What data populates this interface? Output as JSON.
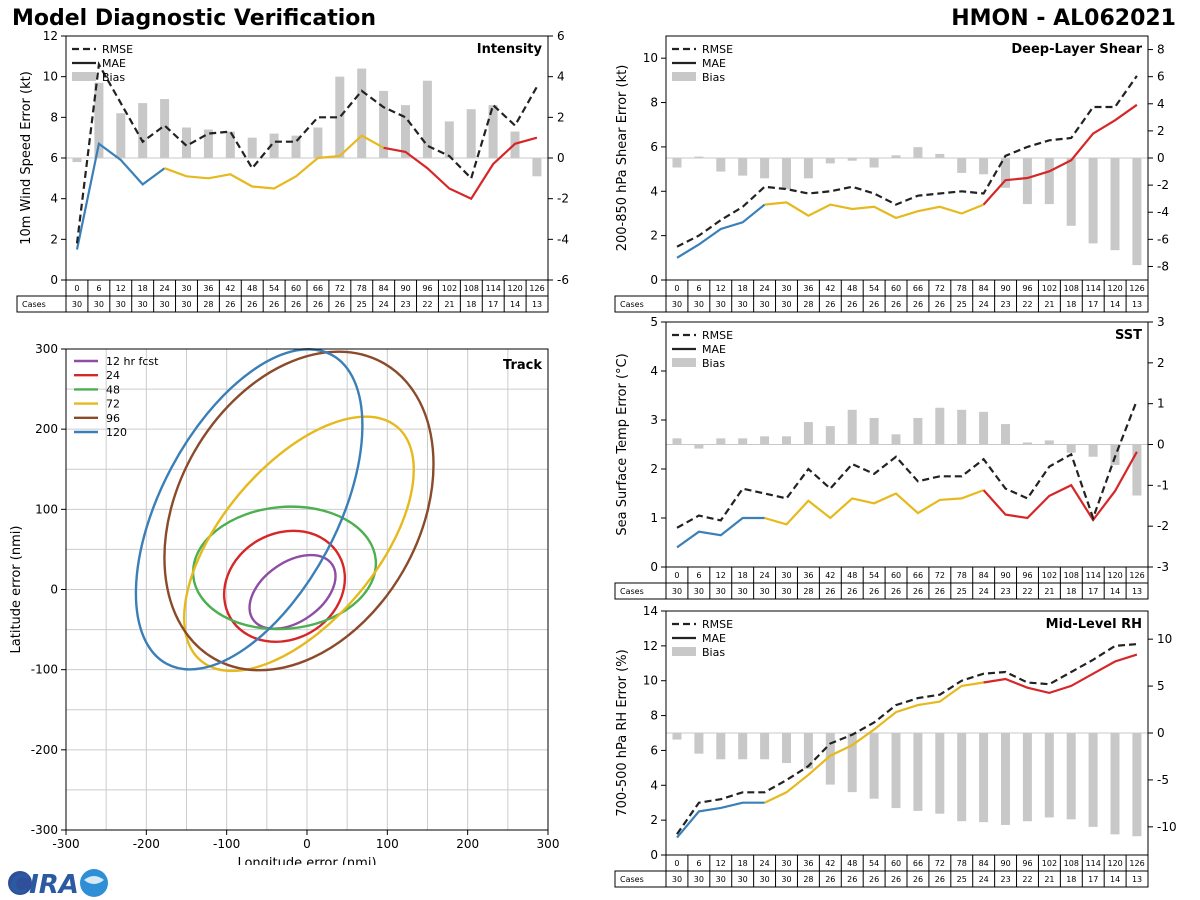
{
  "header": {
    "title": "Model Diagnostic Verification",
    "model_storm": "HMON - AL062021"
  },
  "colors": {
    "blue": "#3a7fb8",
    "yellow": "#e6b91e",
    "red": "#d62728",
    "rmse": "#222222",
    "bias": "#c8c8c8",
    "grid": "#cccccc"
  },
  "table": {
    "cases_label": "Cases",
    "hours": [
      "0",
      "6",
      "12",
      "18",
      "24",
      "30",
      "36",
      "42",
      "48",
      "54",
      "60",
      "66",
      "72",
      "78",
      "84",
      "90",
      "96",
      "102",
      "108",
      "114",
      "120",
      "126"
    ],
    "cases": [
      "30",
      "30",
      "30",
      "30",
      "30",
      "30",
      "28",
      "26",
      "26",
      "26",
      "26",
      "26",
      "26",
      "25",
      "24",
      "23",
      "22",
      "21",
      "18",
      "17",
      "14",
      "13"
    ]
  },
  "logo": {
    "text": "CIRA"
  },
  "chart_data": [
    {
      "id": "intensity",
      "type": "line",
      "title": "Intensity",
      "ylabel": "10m Wind Speed Error (kt)",
      "ylim": [
        0,
        12
      ],
      "yticks": [
        0,
        2,
        4,
        6,
        8,
        10,
        12
      ],
      "y2lim": [
        -6,
        6
      ],
      "y2ticks": [
        -6,
        -4,
        -2,
        0,
        2,
        4,
        6
      ],
      "legend": [
        "RMSE",
        "MAE",
        "Bias"
      ],
      "x": [
        0,
        6,
        12,
        18,
        24,
        30,
        36,
        42,
        48,
        54,
        60,
        66,
        72,
        78,
        84,
        90,
        96,
        102,
        108,
        114,
        120,
        126
      ],
      "rmse": [
        1.8,
        10.6,
        8.7,
        6.8,
        7.6,
        6.6,
        7.2,
        7.3,
        5.5,
        6.8,
        6.8,
        8.0,
        8.0,
        9.3,
        8.5,
        8.0,
        6.6,
        6.1,
        5.0,
        8.6,
        7.6,
        9.5
      ],
      "mae": [
        1.5,
        6.7,
        5.9,
        4.7,
        5.5,
        5.1,
        5.0,
        5.2,
        4.6,
        4.5,
        5.1,
        6.0,
        6.1,
        7.1,
        6.5,
        6.3,
        5.5,
        4.5,
        4.0,
        5.7,
        6.7,
        7.0
      ],
      "bias": [
        -0.2,
        3.7,
        2.2,
        2.7,
        2.9,
        1.5,
        1.4,
        1.3,
        1.0,
        1.2,
        1.1,
        1.5,
        4.0,
        4.4,
        3.3,
        2.6,
        3.8,
        1.8,
        2.4,
        2.6,
        1.3,
        -0.9
      ]
    },
    {
      "id": "shear",
      "type": "line",
      "title": "Deep-Layer Shear",
      "ylabel": "200-850 hPa Shear Error (kt)",
      "ylim": [
        0,
        11
      ],
      "yticks": [
        0,
        2,
        4,
        6,
        8,
        10
      ],
      "y2lim": [
        -9,
        9
      ],
      "y2ticks": [
        -8,
        -6,
        -4,
        -2,
        0,
        2,
        4,
        6,
        8
      ],
      "legend": [
        "RMSE",
        "MAE",
        "Bias"
      ],
      "x": [
        0,
        6,
        12,
        18,
        24,
        30,
        36,
        42,
        48,
        54,
        60,
        66,
        72,
        78,
        84,
        90,
        96,
        102,
        108,
        114,
        120,
        126
      ],
      "rmse": [
        1.5,
        2.0,
        2.7,
        3.3,
        4.2,
        4.1,
        3.9,
        4.0,
        4.2,
        3.9,
        3.4,
        3.8,
        3.9,
        4.0,
        3.9,
        5.6,
        6.0,
        6.3,
        6.4,
        7.8,
        7.8,
        9.2
      ],
      "mae": [
        1.0,
        1.6,
        2.3,
        2.6,
        3.4,
        3.5,
        2.9,
        3.4,
        3.2,
        3.3,
        2.8,
        3.1,
        3.3,
        3.0,
        3.4,
        4.5,
        4.6,
        4.9,
        5.4,
        6.6,
        7.2,
        7.9
      ],
      "bias": [
        -0.7,
        0.1,
        -1.0,
        -1.3,
        -1.5,
        -2.3,
        -1.5,
        -0.4,
        -0.2,
        -0.7,
        0.2,
        0.8,
        0.3,
        -1.1,
        -1.2,
        -2.2,
        -3.4,
        -3.4,
        -5.0,
        -6.3,
        -6.8,
        -7.9
      ]
    },
    {
      "id": "sst",
      "type": "line",
      "title": "SST",
      "ylabel": "Sea Surface Temp Error (°C)",
      "ylim": [
        0,
        5
      ],
      "yticks": [
        0,
        1,
        2,
        3,
        4,
        5
      ],
      "y2lim": [
        -3,
        3
      ],
      "y2ticks": [
        -3,
        -2,
        -1,
        0,
        1,
        2,
        3
      ],
      "legend": [
        "RMSE",
        "MAE",
        "Bias"
      ],
      "x": [
        0,
        6,
        12,
        18,
        24,
        30,
        36,
        42,
        48,
        54,
        60,
        66,
        72,
        78,
        84,
        90,
        96,
        102,
        108,
        114,
        120,
        126
      ],
      "rmse": [
        0.8,
        1.05,
        0.95,
        1.6,
        1.5,
        1.4,
        2.0,
        1.6,
        2.1,
        1.9,
        2.25,
        1.75,
        1.85,
        1.85,
        2.2,
        1.6,
        1.4,
        2.05,
        2.3,
        1.0,
        2.25,
        3.4
      ],
      "mae": [
        0.4,
        0.72,
        0.65,
        1.0,
        1.0,
        0.87,
        1.35,
        1.0,
        1.4,
        1.3,
        1.5,
        1.1,
        1.37,
        1.4,
        1.57,
        1.07,
        1.0,
        1.45,
        1.67,
        0.96,
        1.55,
        2.35
      ],
      "bias": [
        0.15,
        -0.1,
        0.15,
        0.15,
        0.2,
        0.2,
        0.55,
        0.45,
        0.85,
        0.65,
        0.25,
        0.65,
        0.9,
        0.85,
        0.8,
        0.5,
        0.05,
        0.1,
        -0.2,
        -0.3,
        -0.5,
        -1.25
      ]
    },
    {
      "id": "rh",
      "type": "line",
      "title": "Mid-Level RH",
      "ylabel": "700-500 hPa RH Error (%)",
      "ylim": [
        0,
        14
      ],
      "yticks": [
        0,
        2,
        4,
        6,
        8,
        10,
        12,
        14
      ],
      "y2lim": [
        -13,
        13
      ],
      "y2ticks": [
        -10,
        -5,
        0,
        5,
        10
      ],
      "legend": [
        "RMSE",
        "MAE",
        "Bias"
      ],
      "x": [
        0,
        6,
        12,
        18,
        24,
        30,
        36,
        42,
        48,
        54,
        60,
        66,
        72,
        78,
        84,
        90,
        96,
        102,
        108,
        114,
        120,
        126
      ],
      "rmse": [
        1.2,
        3.0,
        3.2,
        3.6,
        3.6,
        4.3,
        5.1,
        6.4,
        6.9,
        7.6,
        8.6,
        9.0,
        9.2,
        10.0,
        10.4,
        10.5,
        9.9,
        9.8,
        10.5,
        11.2,
        12.0,
        12.1
      ],
      "mae": [
        1.0,
        2.5,
        2.7,
        3.0,
        3.0,
        3.6,
        4.6,
        5.7,
        6.3,
        7.2,
        8.2,
        8.6,
        8.8,
        9.7,
        9.9,
        10.1,
        9.6,
        9.3,
        9.7,
        10.4,
        11.1,
        11.5
      ],
      "bias": [
        -0.7,
        -2.2,
        -2.8,
        -2.8,
        -2.8,
        -3.2,
        -3.8,
        -5.5,
        -6.3,
        -7.0,
        -8.0,
        -8.3,
        -8.6,
        -9.4,
        -9.5,
        -9.8,
        -9.4,
        -9.0,
        -9.2,
        -10.0,
        -10.8,
        -11.0
      ]
    },
    {
      "id": "track",
      "type": "scatter",
      "title": "Track",
      "xlabel": "Longitude error (nmi)",
      "ylabel": "Latitude error (nmi)",
      "xlim": [
        -300,
        300
      ],
      "ylim": [
        -300,
        300
      ],
      "ticks": [
        -300,
        -200,
        -100,
        0,
        100,
        200,
        300
      ],
      "grid_step": 50,
      "legend_placement": "top-left",
      "ellipses": [
        {
          "label": "12 hr fcst",
          "color": "#8e4ea6",
          "cx": -18,
          "cy": -3,
          "rx": 60,
          "ry": 37,
          "angle": 35
        },
        {
          "label": "24",
          "color": "#d62728",
          "cx": -28,
          "cy": 4,
          "rx": 78,
          "ry": 66,
          "angle": 30
        },
        {
          "label": "48",
          "color": "#4caf50",
          "cx": -28,
          "cy": 27,
          "rx": 114,
          "ry": 76,
          "angle": 5
        },
        {
          "label": "72",
          "color": "#e6b91e",
          "cx": -10,
          "cy": 57,
          "rx": 190,
          "ry": 97,
          "angle": 50
        },
        {
          "label": "96",
          "color": "#8b4a2a",
          "cx": -10,
          "cy": 98,
          "rx": 212,
          "ry": 150,
          "angle": 60
        },
        {
          "label": "120",
          "color": "#3a7fb8",
          "cx": -72,
          "cy": 100,
          "rx": 218,
          "ry": 110,
          "angle": 62
        }
      ]
    }
  ]
}
